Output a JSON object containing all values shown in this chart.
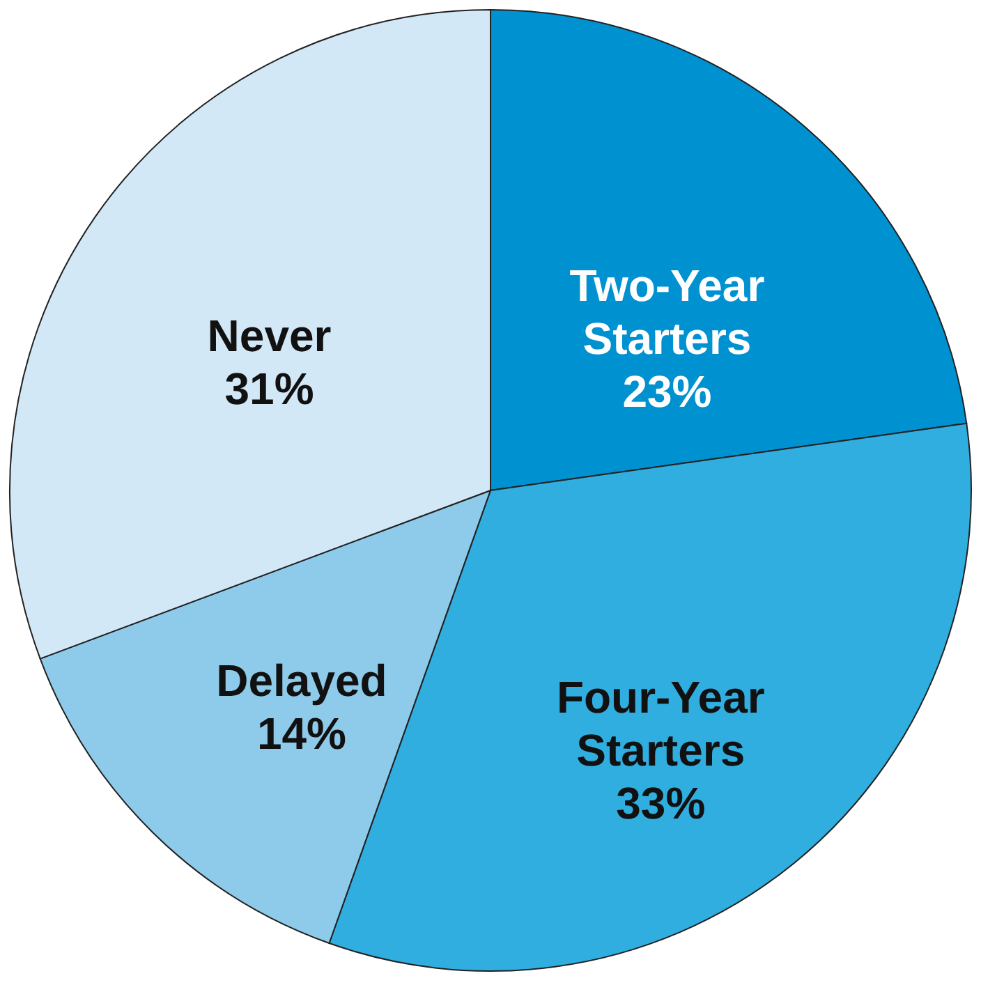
{
  "chart_data": {
    "type": "pie",
    "categories": [
      "Two-Year Starters",
      "Four-Year Starters",
      "Delayed",
      "Never"
    ],
    "values": [
      23,
      33,
      14,
      31
    ],
    "colors": [
      "#0091d1",
      "#30aee0",
      "#8ecbea",
      "#d2e8f6"
    ],
    "value_labels": [
      "23%",
      "33%",
      "14%",
      "31%"
    ]
  }
}
